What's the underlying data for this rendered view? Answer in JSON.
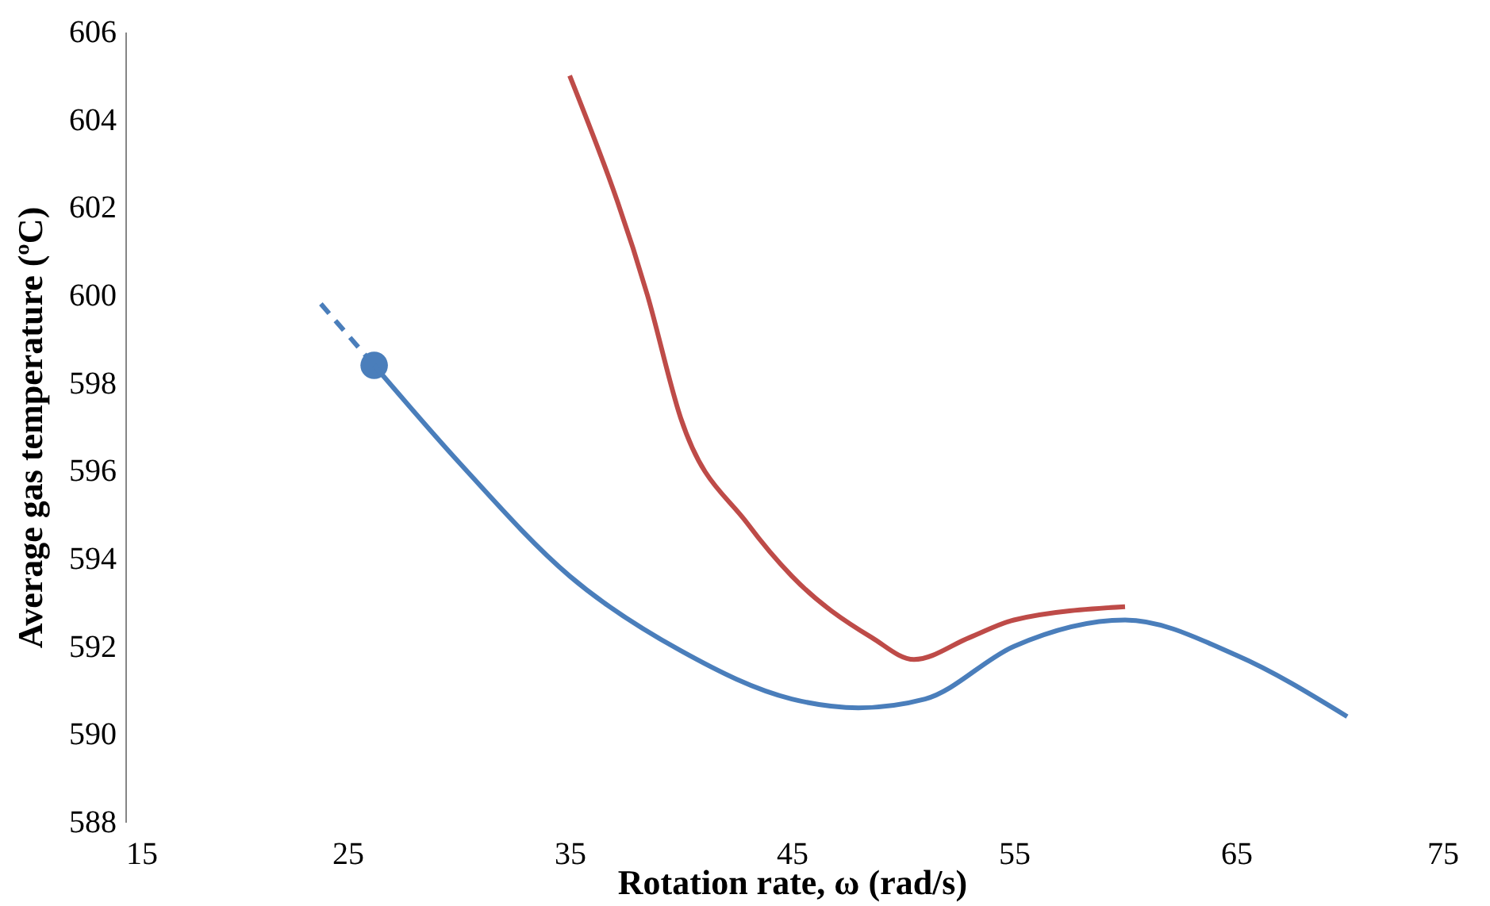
{
  "chart_data": {
    "type": "line",
    "xlabel": "Rotation rate, ω (rad/s)",
    "ylabel": "Average gas temperature (ºC)",
    "xlim": [
      15,
      75
    ],
    "xticks": [
      15,
      25,
      35,
      45,
      55,
      65,
      75
    ],
    "ylim": [
      588,
      606
    ],
    "yticks": [
      588,
      590,
      592,
      594,
      596,
      598,
      600,
      602,
      604,
      606
    ],
    "grid": false,
    "series": [
      {
        "color": "#4a7ebb",
        "line_style": "dashed",
        "marker": "none",
        "x": [
          23.8,
          26.2
        ],
        "values": [
          599.8,
          598.4
        ]
      },
      {
        "type": "scatter",
        "color": "#4a7ebb",
        "marker": "circle",
        "x": [
          26.2
        ],
        "values": [
          598.4
        ]
      },
      {
        "color": "#4a7ebb",
        "line_style": "solid",
        "marker": "none",
        "x": [
          26.2,
          30,
          35,
          40,
          45,
          48,
          51,
          55,
          60,
          65,
          70
        ],
        "values": [
          598.4,
          596.2,
          593.6,
          591.9,
          590.8,
          590.6,
          590.8,
          592.0,
          592.6,
          591.8,
          590.4
        ]
      },
      {
        "color": "#be4b48",
        "line_style": "solid",
        "marker": "none",
        "x": [
          35,
          38.5,
          40,
          43,
          45,
          48.6,
          50.5,
          53,
          55,
          60
        ],
        "values": [
          605.0,
          600.0,
          597.2,
          594.8,
          593.6,
          592.2,
          591.7,
          592.2,
          592.6,
          592.9
        ]
      }
    ]
  }
}
